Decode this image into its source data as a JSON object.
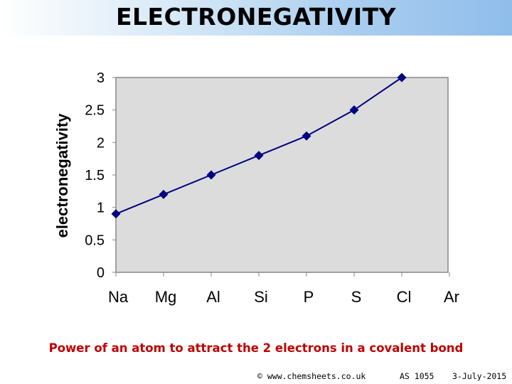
{
  "header": {
    "title": "ELECTRONEGATIVITY"
  },
  "chart_data": {
    "type": "line",
    "title": "",
    "xlabel": "",
    "ylabel": "electronegativity",
    "categories": [
      "Na",
      "Mg",
      "Al",
      "Si",
      "P",
      "S",
      "Cl",
      "Ar"
    ],
    "series": [
      {
        "values": [
          0.9,
          1.2,
          1.5,
          1.8,
          2.1,
          2.5,
          3.0,
          null
        ]
      }
    ],
    "ylim": [
      0,
      3
    ],
    "yticks": [
      "0",
      "0.5",
      "1",
      "1.5",
      "2",
      "2.5",
      "3"
    ],
    "grid": false,
    "legend": "none",
    "colors": {
      "plot_background": "#dcdcdc",
      "line": "#000080",
      "marker": "#000080",
      "axes": "#888888"
    }
  },
  "caption": "Power of an atom to attract the 2 electrons in a covalent bond",
  "footer": {
    "copyright": "© www.chemsheets.co.uk",
    "code": "AS 1055",
    "date": "3-July-2015"
  }
}
